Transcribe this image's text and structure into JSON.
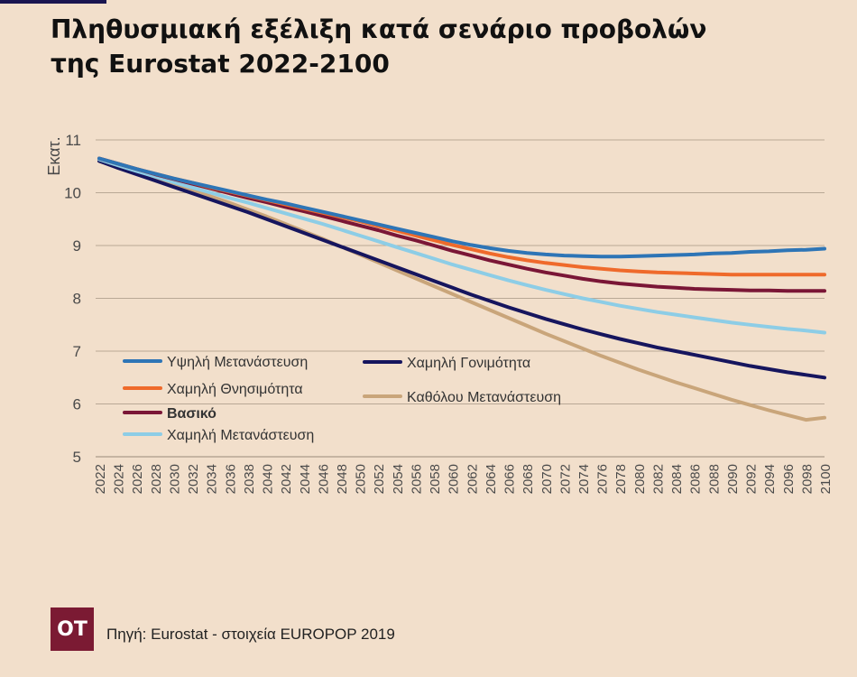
{
  "title_line1": "Πληθυσμιακή εξέλιξη κατά σενάριο προβολών",
  "title_line2": "της Eurostat 2022-2100",
  "logo_text": "OT",
  "source": "Πηγή: Eurostat - στοιχεία EUROPOP 2019",
  "chart_data": {
    "type": "line",
    "ylabel": "Εκατ.",
    "ylim": [
      5,
      11
    ],
    "yticks": [
      5,
      6,
      7,
      8,
      9,
      10,
      11
    ],
    "grid": true,
    "legend_position": "bottom-left",
    "x": [
      2022,
      2024,
      2026,
      2028,
      2030,
      2032,
      2034,
      2036,
      2038,
      2040,
      2042,
      2044,
      2046,
      2048,
      2050,
      2052,
      2054,
      2056,
      2058,
      2060,
      2062,
      2064,
      2066,
      2068,
      2070,
      2072,
      2074,
      2076,
      2078,
      2080,
      2082,
      2084,
      2086,
      2088,
      2090,
      2092,
      2094,
      2096,
      2098,
      2100
    ],
    "series": [
      {
        "name": "Υψηλή Μετανάστευση",
        "color": "#2e75b6",
        "bold": false,
        "values": [
          10.65,
          10.55,
          10.45,
          10.36,
          10.27,
          10.19,
          10.11,
          10.03,
          9.95,
          9.87,
          9.8,
          9.72,
          9.64,
          9.56,
          9.48,
          9.4,
          9.32,
          9.24,
          9.16,
          9.08,
          9.01,
          8.95,
          8.9,
          8.86,
          8.83,
          8.81,
          8.8,
          8.79,
          8.79,
          8.8,
          8.81,
          8.82,
          8.83,
          8.85,
          8.86,
          8.88,
          8.89,
          8.91,
          8.92,
          8.94
        ]
      },
      {
        "name": "Χαμηλή Θνησιμότητα",
        "color": "#ef6a2b",
        "bold": false,
        "values": [
          10.65,
          10.55,
          10.45,
          10.36,
          10.27,
          10.19,
          10.1,
          10.02,
          9.94,
          9.86,
          9.78,
          9.7,
          9.62,
          9.54,
          9.46,
          9.37,
          9.28,
          9.19,
          9.1,
          9.01,
          8.93,
          8.85,
          8.78,
          8.72,
          8.67,
          8.63,
          8.59,
          8.56,
          8.53,
          8.51,
          8.49,
          8.48,
          8.47,
          8.46,
          8.45,
          8.45,
          8.45,
          8.45,
          8.45,
          8.45
        ]
      },
      {
        "name": "Βασικό",
        "color": "#7a1636",
        "bold": true,
        "values": [
          10.65,
          10.55,
          10.45,
          10.35,
          10.26,
          10.17,
          10.08,
          9.99,
          9.9,
          9.82,
          9.73,
          9.65,
          9.56,
          9.47,
          9.38,
          9.29,
          9.19,
          9.1,
          9.0,
          8.9,
          8.81,
          8.72,
          8.64,
          8.56,
          8.49,
          8.43,
          8.37,
          8.32,
          8.28,
          8.25,
          8.22,
          8.2,
          8.18,
          8.17,
          8.16,
          8.15,
          8.15,
          8.14,
          8.14,
          8.14
        ]
      },
      {
        "name": "Χαμηλή Μετανάστευση",
        "color": "#8dcde6",
        "bold": false,
        "values": [
          10.63,
          10.52,
          10.41,
          10.31,
          10.2,
          10.1,
          10.0,
          9.9,
          9.81,
          9.71,
          9.61,
          9.51,
          9.41,
          9.3,
          9.19,
          9.08,
          8.97,
          8.86,
          8.75,
          8.64,
          8.54,
          8.44,
          8.34,
          8.25,
          8.16,
          8.08,
          8.0,
          7.93,
          7.86,
          7.8,
          7.74,
          7.69,
          7.64,
          7.59,
          7.54,
          7.5,
          7.46,
          7.42,
          7.39,
          7.35
        ]
      },
      {
        "name": "Χαμηλή Γονιμότητα",
        "color": "#16155e",
        "bold": false,
        "values": [
          10.6,
          10.47,
          10.35,
          10.23,
          10.11,
          9.99,
          9.87,
          9.75,
          9.63,
          9.5,
          9.37,
          9.24,
          9.11,
          8.98,
          8.85,
          8.72,
          8.59,
          8.46,
          8.33,
          8.2,
          8.07,
          7.95,
          7.83,
          7.72,
          7.61,
          7.51,
          7.41,
          7.32,
          7.23,
          7.15,
          7.07,
          7.0,
          6.93,
          6.86,
          6.79,
          6.72,
          6.66,
          6.6,
          6.55,
          6.5
        ]
      },
      {
        "name": "Καθόλου Μετανάστευση",
        "color": "#c9a57a",
        "bold": false,
        "values": [
          10.6,
          10.5,
          10.39,
          10.28,
          10.17,
          10.05,
          9.93,
          9.81,
          9.68,
          9.55,
          9.41,
          9.27,
          9.13,
          8.98,
          8.83,
          8.68,
          8.53,
          8.38,
          8.23,
          8.08,
          7.93,
          7.78,
          7.63,
          7.48,
          7.33,
          7.19,
          7.05,
          6.91,
          6.78,
          6.65,
          6.53,
          6.41,
          6.3,
          6.19,
          6.08,
          5.98,
          5.88,
          5.79,
          5.7,
          5.74
        ]
      }
    ]
  }
}
